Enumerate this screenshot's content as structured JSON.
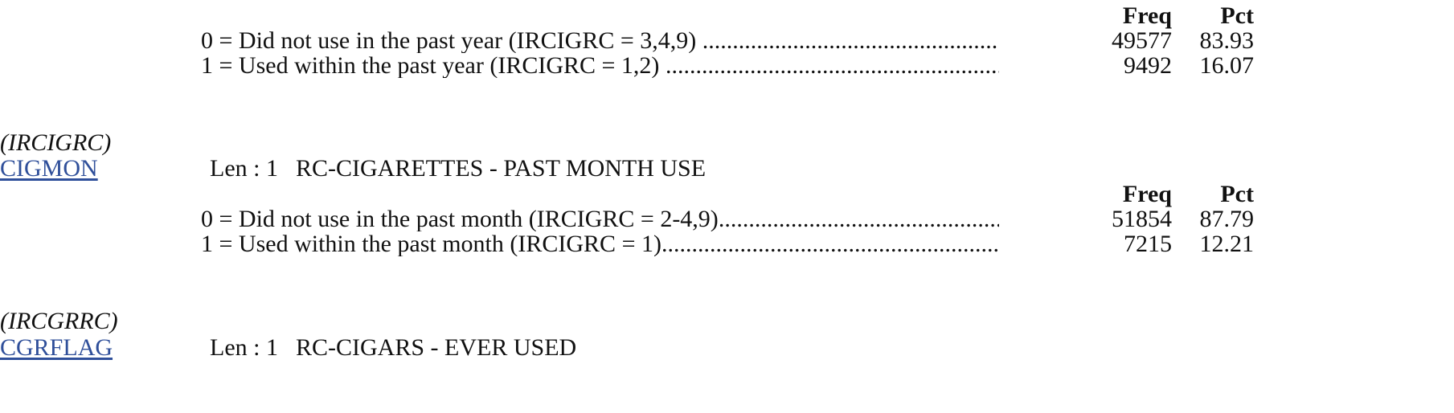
{
  "blocks": [
    {
      "headers": {
        "freq": "Freq",
        "pct": "Pct"
      },
      "rows": [
        {
          "label": "0 = Did not use in the past year (IRCIGRC = 3,4,9) ",
          "freq": "49577",
          "pct": "83.93"
        },
        {
          "label": "1 = Used within the past year (IRCIGRC = 1,2) ",
          "freq": "9492",
          "pct": "16.07"
        }
      ]
    },
    {
      "origin": "(IRCIGRC)",
      "variable": "CIGMON",
      "len": "Len : 1",
      "description": "RC-CIGARETTES - PAST MONTH USE",
      "headers": {
        "freq": "Freq",
        "pct": "Pct"
      },
      "rows": [
        {
          "label": "0 = Did not use in the past month (IRCIGRC = 2-4,9)",
          "freq": "51854",
          "pct": "87.79"
        },
        {
          "label": "1 = Used within the past month (IRCIGRC = 1)",
          "freq": "7215",
          "pct": "12.21"
        }
      ]
    },
    {
      "origin": "(IRCGRRC)",
      "variable": "CGRFLAG",
      "len": "Len : 1",
      "description": "RC-CIGARS - EVER USED"
    }
  ],
  "leader_text": "........................................................................................................................................................................................................"
}
